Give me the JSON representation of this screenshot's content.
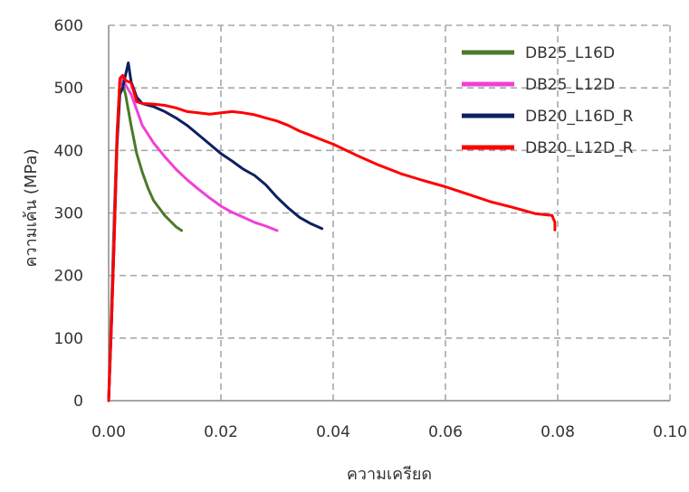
{
  "chart_data": {
    "type": "line",
    "title": "",
    "xlabel": "ความเครียด",
    "ylabel": "ความเค้น (MPa)",
    "xlim": [
      0,
      0.1
    ],
    "ylim": [
      0,
      600
    ],
    "xticks": [
      0,
      0.02,
      0.04,
      0.06,
      0.08,
      0.1
    ],
    "xtick_labels": [
      "0.00",
      "0.02",
      "0.04",
      "0.06",
      "0.08",
      "0.10"
    ],
    "yticks": [
      0,
      100,
      200,
      300,
      400,
      500,
      600
    ],
    "ytick_labels": [
      "0",
      "100",
      "200",
      "300",
      "400",
      "500",
      "600"
    ],
    "grid": true,
    "legend_position": "top-right",
    "series": [
      {
        "name": "DB25_L16D",
        "color": "#4a7a2a",
        "x": [
          0,
          0.0005,
          0.001,
          0.0015,
          0.002,
          0.0025,
          0.003,
          0.004,
          0.005,
          0.006,
          0.007,
          0.008,
          0.009,
          0.01,
          0.011,
          0.012,
          0.013
        ],
        "y": [
          0,
          150,
          300,
          430,
          510,
          505,
          490,
          440,
          395,
          365,
          340,
          320,
          308,
          296,
          287,
          278,
          272
        ]
      },
      {
        "name": "DB25_L12D",
        "color": "#f040d8",
        "x": [
          0,
          0.0005,
          0.001,
          0.0015,
          0.002,
          0.0025,
          0.003,
          0.004,
          0.005,
          0.006,
          0.008,
          0.01,
          0.012,
          0.014,
          0.016,
          0.018,
          0.02,
          0.022,
          0.024,
          0.026,
          0.028,
          0.03
        ],
        "y": [
          0,
          130,
          280,
          420,
          505,
          515,
          505,
          490,
          465,
          440,
          412,
          390,
          370,
          353,
          338,
          324,
          311,
          301,
          293,
          285,
          279,
          272
        ]
      },
      {
        "name": "DB20_L16D_R",
        "color": "#0d2060",
        "x": [
          0,
          0.0005,
          0.001,
          0.0015,
          0.002,
          0.0025,
          0.003,
          0.0035,
          0.004,
          0.005,
          0.006,
          0.008,
          0.01,
          0.012,
          0.014,
          0.016,
          0.018,
          0.02,
          0.022,
          0.024,
          0.026,
          0.028,
          0.03,
          0.032,
          0.034,
          0.036,
          0.038
        ],
        "y": [
          0,
          120,
          260,
          410,
          490,
          500,
          520,
          540,
          510,
          485,
          475,
          470,
          462,
          452,
          440,
          425,
          410,
          395,
          383,
          370,
          360,
          345,
          325,
          308,
          293,
          283,
          275
        ]
      },
      {
        "name": "DB20_L12D_R",
        "color": "#ff0000",
        "x": [
          0,
          0.0005,
          0.001,
          0.0015,
          0.002,
          0.0025,
          0.003,
          0.004,
          0.005,
          0.006,
          0.008,
          0.01,
          0.012,
          0.014,
          0.016,
          0.018,
          0.02,
          0.022,
          0.024,
          0.026,
          0.028,
          0.03,
          0.032,
          0.034,
          0.036,
          0.038,
          0.04,
          0.044,
          0.048,
          0.052,
          0.056,
          0.06,
          0.064,
          0.068,
          0.072,
          0.076,
          0.079,
          0.0795,
          0.0795
        ],
        "y": [
          0,
          120,
          260,
          420,
          515,
          520,
          512,
          508,
          478,
          475,
          474,
          472,
          468,
          462,
          460,
          458,
          460,
          462,
          460,
          457,
          452,
          447,
          440,
          431,
          424,
          417,
          410,
          393,
          377,
          363,
          352,
          342,
          330,
          318,
          309,
          299,
          296,
          285,
          273
        ]
      }
    ]
  }
}
